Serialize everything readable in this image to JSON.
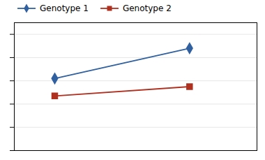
{
  "chart_data": {
    "type": "line",
    "x": [
      1,
      2
    ],
    "series": [
      {
        "name": "Genotype 1",
        "color": "#3060a0",
        "marker": "diamond",
        "values": [
          0.62,
          0.88
        ]
      },
      {
        "name": "Genotype 2",
        "color": "#b03020",
        "marker": "square",
        "values": [
          0.47,
          0.55
        ]
      }
    ],
    "xlim": [
      0.7,
      2.5
    ],
    "xticks": [],
    "ylim": [
      0.0,
      1.1
    ],
    "yticks": [
      0.0,
      0.2,
      0.4,
      0.6,
      0.8,
      1.0
    ],
    "grid": true,
    "tick_labels": false,
    "legend": "right"
  }
}
